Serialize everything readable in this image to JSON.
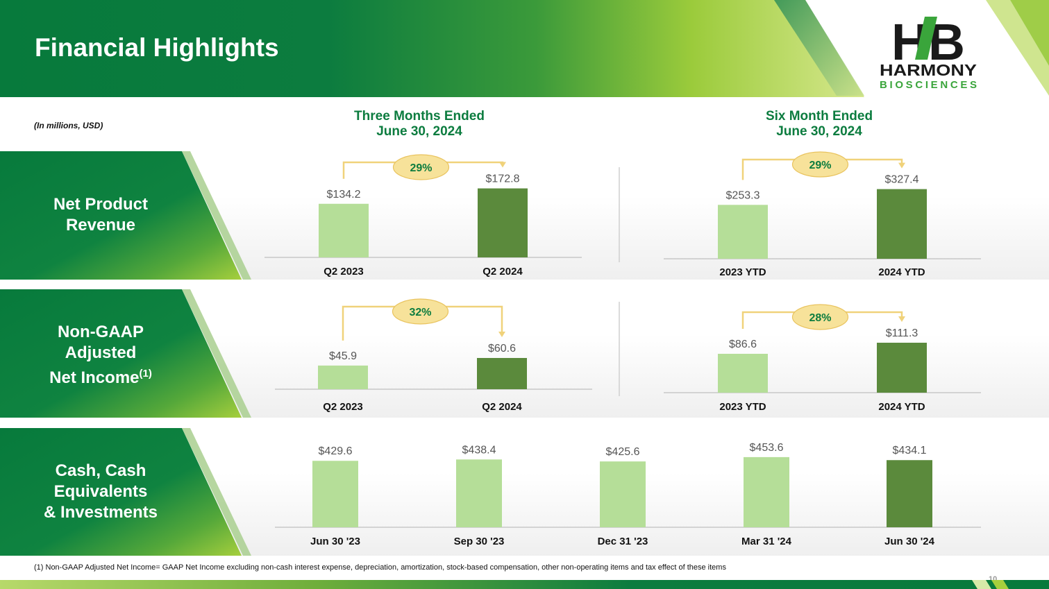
{
  "header": {
    "title": "Financial Highlights"
  },
  "logo": {
    "line1": "HARMONY",
    "line2": "BIOSCIENCES",
    "monogram": "HB"
  },
  "units_note": "(In millions, USD)",
  "columns": {
    "three_months_line1": "Three Months Ended",
    "three_months_line2": "June 30, 2024",
    "six_months_line1": "Six Month Ended",
    "six_months_line2": "June 30, 2024"
  },
  "rows": {
    "revenue": {
      "line1": "Net Product",
      "line2": "Revenue"
    },
    "income": {
      "line1": "Non-GAAP",
      "line2": "Adjusted",
      "line3": "Net Income",
      "sup": "(1)"
    },
    "cash": {
      "line1": "Cash, Cash",
      "line2": "Equivalents",
      "line3": "& Investments"
    }
  },
  "footnote": "(1) Non-GAAP Adjusted Net Income= GAAP Net Income excluding non-cash interest expense, depreciation, amortization, stock-based compensation, other non-operating items and tax effect of these items",
  "page_number": "10",
  "colors": {
    "header_green": "#077a3c",
    "bar_prior": "#b5de98",
    "bar_current": "#5b8a3c",
    "accent_yellow": "#f0d27a",
    "bubble_fill": "#f7e29a",
    "heading_green": "#0c7c3f"
  },
  "chart_data": [
    {
      "id": "revenue_q2",
      "type": "bar",
      "title": "Net Product Revenue – Three Months Ended June 30, 2024",
      "categories": [
        "Q2 2023",
        "Q2 2024"
      ],
      "values": [
        134.2,
        172.8
      ],
      "value_labels": [
        "$134.2",
        "$172.8"
      ],
      "growth": "29%"
    },
    {
      "id": "revenue_ytd",
      "type": "bar",
      "title": "Net Product Revenue – Six Month Ended June 30, 2024",
      "categories": [
        "2023 YTD",
        "2024 YTD"
      ],
      "values": [
        253.3,
        327.4
      ],
      "value_labels": [
        "$253.3",
        "$327.4"
      ],
      "growth": "29%"
    },
    {
      "id": "income_q2",
      "type": "bar",
      "title": "Non-GAAP Adjusted Net Income – Three Months Ended June 30, 2024",
      "categories": [
        "Q2 2023",
        "Q2 2024"
      ],
      "values": [
        45.9,
        60.6
      ],
      "value_labels": [
        "$45.9",
        "$60.6"
      ],
      "growth": "32%"
    },
    {
      "id": "income_ytd",
      "type": "bar",
      "title": "Non-GAAP Adjusted Net Income – Six Month Ended June 30, 2024",
      "categories": [
        "2023 YTD",
        "2024 YTD"
      ],
      "values": [
        86.6,
        111.3
      ],
      "value_labels": [
        "$86.6",
        "$111.3"
      ],
      "growth": "28%"
    },
    {
      "id": "cash",
      "type": "bar",
      "title": "Cash, Cash Equivalents & Investments",
      "categories": [
        "Jun 30 '23",
        "Sep 30 '23",
        "Dec 31 '23",
        "Mar 31 '24",
        "Jun 30 '24"
      ],
      "values": [
        429.6,
        438.4,
        425.6,
        453.6,
        434.1
      ],
      "value_labels": [
        "$429.6",
        "$438.4",
        "$425.6",
        "$453.6",
        "$434.1"
      ]
    }
  ]
}
